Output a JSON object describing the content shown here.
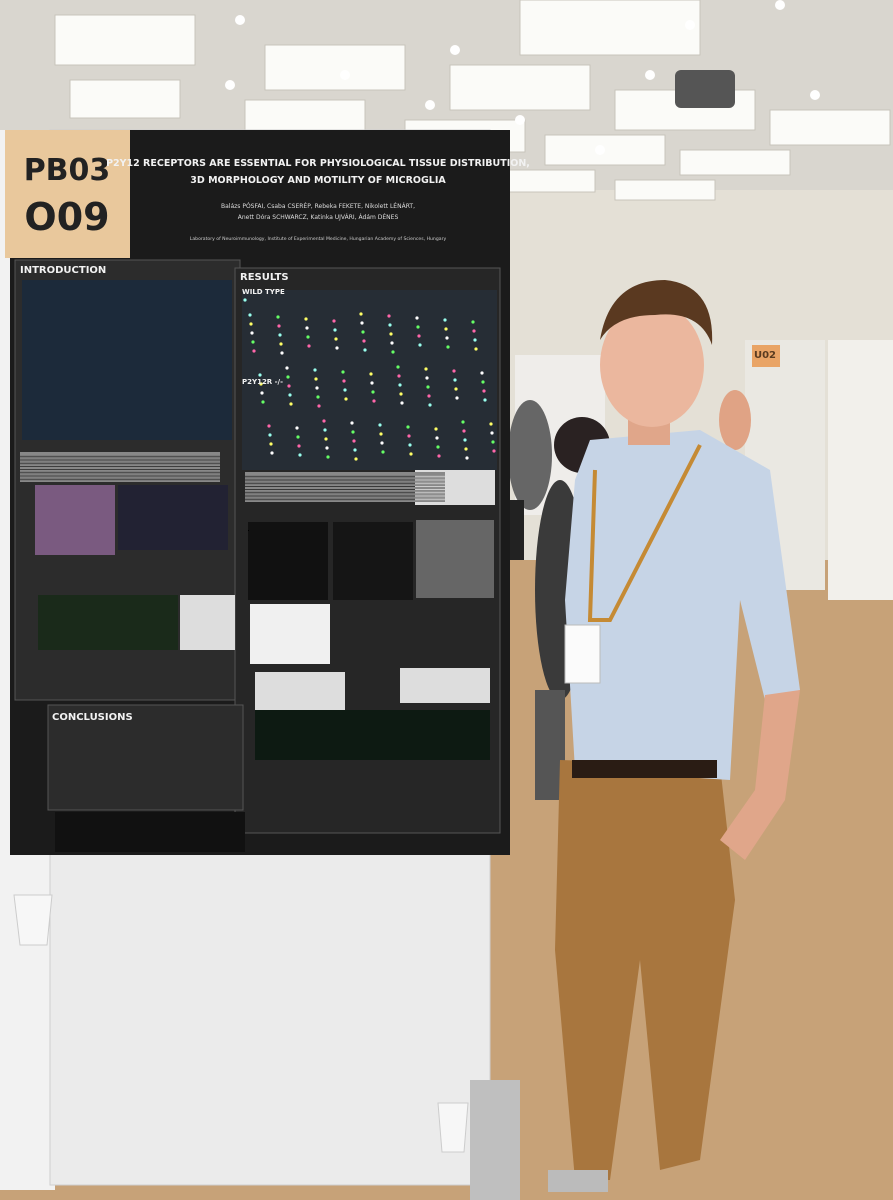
{
  "poster": {
    "board_label": {
      "line1": "PB03",
      "line2": "O09"
    },
    "title_lines": [
      "P2Y12 RECEPTORS ARE ESSENTIAL FOR PHYSIOLOGICAL TISSUE DISTRIBUTION,",
      "3D MORPHOLOGY AND MOTILITY OF MICROGLIA"
    ],
    "author_lines": [
      "Balázs PÓSFAI, Csaba CSERÉP, Rebeka FEKETE, Nikolett LÉNÁRT,",
      "Anett Dóra SCHWARCZ, Katinka UJVÁRI, Ádám DÉNES"
    ],
    "affiliation": "Laboratory of Neuroimmunology, Institute of Experimental Medicine, Hungarian Academy of Sciences, Hungary",
    "sections": {
      "introduction": "INTRODUCTION",
      "results": "RESULTS",
      "wild_type": "WILD TYPE",
      "knockout": "P2Y12R -/-",
      "conclusions": "CONCLUSIONS"
    }
  },
  "background": {
    "board_labels": [
      "U02"
    ]
  }
}
